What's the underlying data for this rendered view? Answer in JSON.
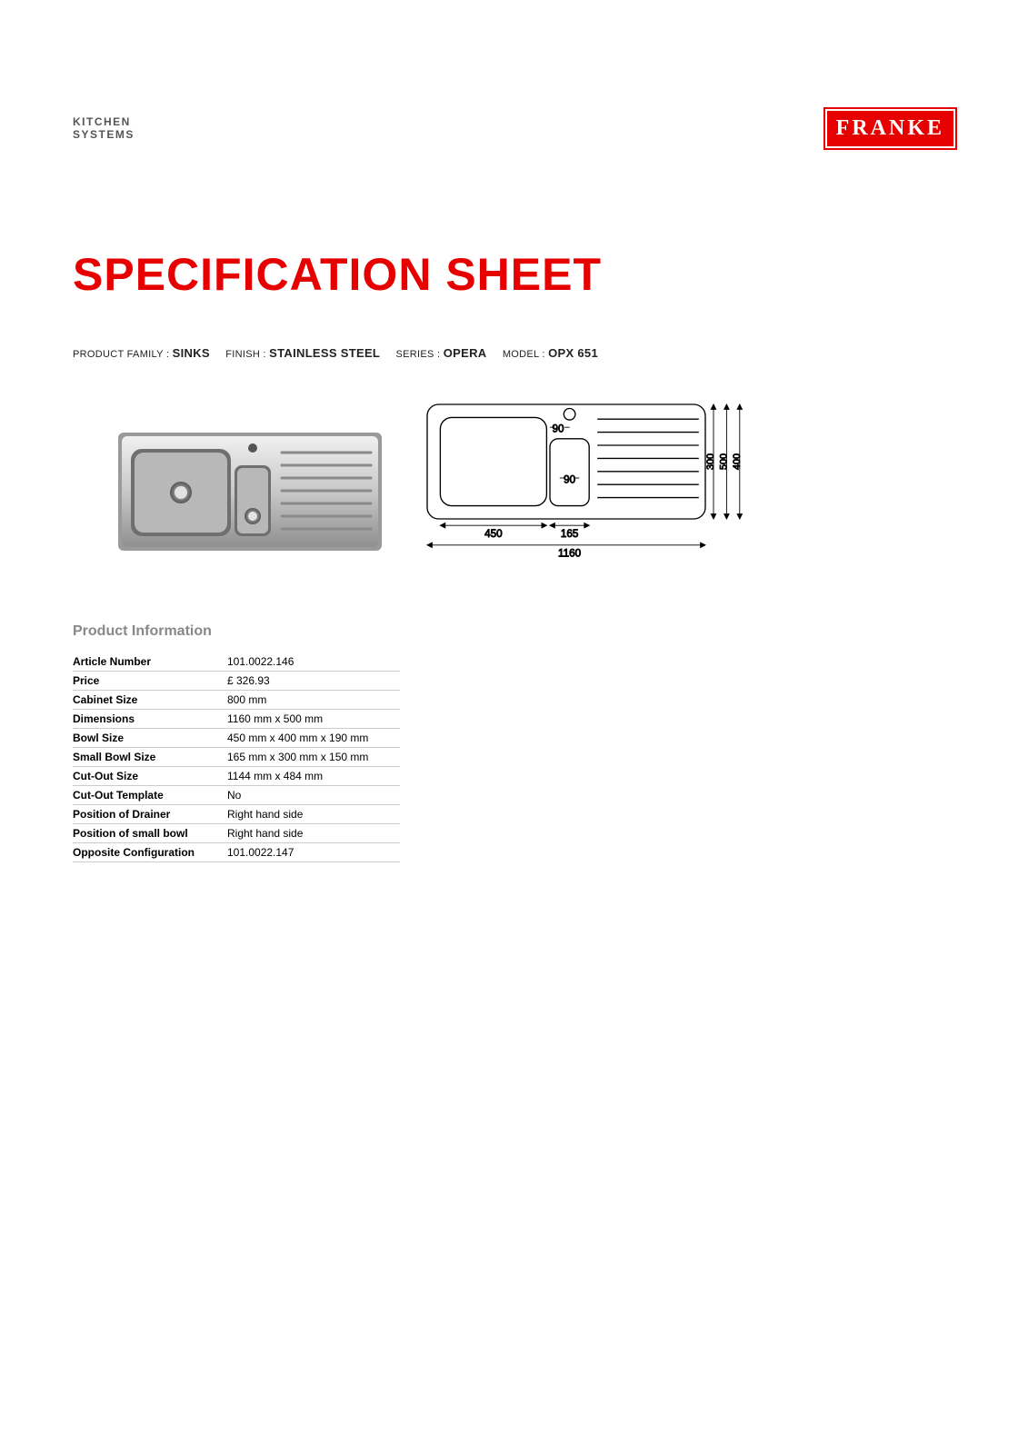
{
  "header": {
    "brand_sub_line1": "KITCHEN",
    "brand_sub_line2": "SYSTEMS",
    "logo_text": "FRANKE",
    "logo_bg": "#e60000",
    "logo_fg": "#ffffff"
  },
  "title": "SPECIFICATION SHEET",
  "title_color": "#e60000",
  "meta": {
    "family_label": "PRODUCT FAMILY :",
    "family_value": "SINKS",
    "finish_label": "FINISH :",
    "finish_value": "STAINLESS STEEL",
    "series_label": "SERIES :",
    "series_value": "OPERA",
    "model_label": "MODEL :",
    "model_value": "OPX 651"
  },
  "diagram": {
    "outer_w": 1160,
    "outer_h": 500,
    "dims_right": [
      "300",
      "500",
      "400"
    ],
    "main_bowl_w": 450,
    "small_bowl_w": 165,
    "tap_hole_d": 90,
    "small_bowl_inner": 90,
    "colors": {
      "stroke": "#000000",
      "photo_frame": "#a8a8a8",
      "photo_steel_light": "#e6e6e6",
      "photo_steel_dark": "#8d8d8d"
    }
  },
  "section_title": "Product Information",
  "info": [
    {
      "k": "Article Number",
      "v": "101.0022.146"
    },
    {
      "k": "Price",
      "v": "£ 326.93"
    },
    {
      "k": "Cabinet Size",
      "v": "800 mm"
    },
    {
      "k": "Dimensions",
      "v": "1160 mm x 500 mm"
    },
    {
      "k": "Bowl Size",
      "v": "450 mm x 400 mm x 190 mm"
    },
    {
      "k": "Small Bowl Size",
      "v": "165 mm x 300 mm x 150 mm"
    },
    {
      "k": "Cut-Out Size",
      "v": "1144 mm x 484 mm"
    },
    {
      "k": "Cut-Out Template",
      "v": "No"
    },
    {
      "k": "Position of Drainer",
      "v": "Right hand side"
    },
    {
      "k": "Position of small bowl",
      "v": "Right hand side"
    },
    {
      "k": "Opposite Configuration",
      "v": "101.0022.147"
    }
  ]
}
